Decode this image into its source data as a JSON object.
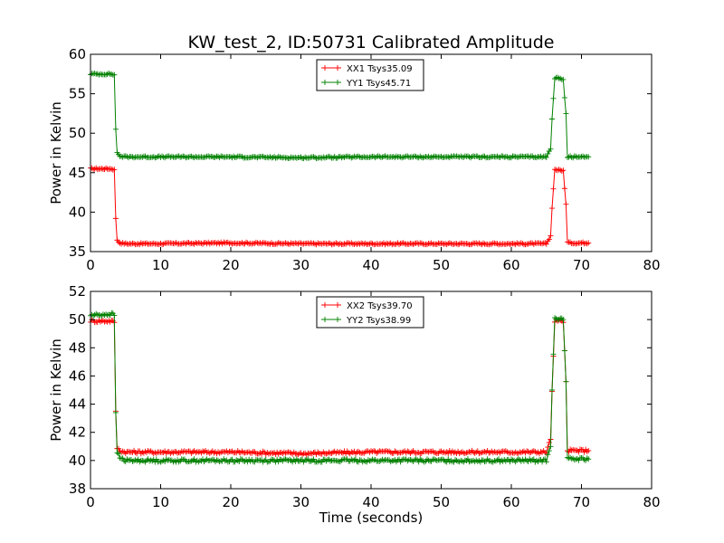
{
  "figure": {
    "title": "KW_test_2, ID:50731 Calibrated Amplitude"
  },
  "chart_data": [
    {
      "type": "line",
      "title": "KW_test_2, ID:50731 Calibrated Amplitude",
      "xlabel": "",
      "ylabel": "Power in Kelvin",
      "xlim": [
        0,
        80
      ],
      "ylim": [
        35,
        60
      ],
      "xticks": [
        "0",
        "10",
        "20",
        "30",
        "40",
        "50",
        "60",
        "70",
        "80"
      ],
      "yticks": [
        "35",
        "40",
        "45",
        "50",
        "55",
        "60"
      ],
      "grid": false,
      "legend_position": "top-center",
      "series": [
        {
          "name": "XX1 Tsys35.09",
          "color": "#ff0000",
          "marker": "plus",
          "x": [
            0,
            3.0,
            3.4,
            3.6,
            3.8,
            4.2,
            5,
            10,
            20,
            30,
            40,
            50,
            60,
            65.0,
            65.6,
            65.8,
            66.2,
            67.0,
            67.4,
            67.6,
            67.8,
            68.0,
            68.4,
            71.0
          ],
          "y": [
            45.5,
            45.5,
            45.4,
            39.2,
            36.4,
            36.1,
            36.0,
            36.0,
            36.1,
            36.0,
            36.0,
            36.0,
            36.0,
            36.0,
            37.0,
            40.5,
            45.4,
            45.3,
            45.3,
            43.0,
            41.0,
            36.2,
            36.1,
            36.1
          ]
        },
        {
          "name": "YY1 Tsys45.71",
          "color": "#008000",
          "marker": "plus",
          "x": [
            0,
            3.0,
            3.4,
            3.6,
            3.8,
            4.2,
            5,
            10,
            20,
            30,
            40,
            50,
            60,
            65.0,
            65.6,
            65.8,
            66.2,
            67.0,
            67.4,
            67.6,
            67.8,
            68.0,
            68.4,
            71.0
          ],
          "y": [
            57.5,
            57.5,
            57.4,
            50.5,
            47.5,
            47.1,
            47.0,
            47.0,
            47.0,
            46.9,
            47.0,
            47.0,
            47.0,
            47.0,
            48.0,
            51.8,
            57.0,
            57.0,
            56.8,
            54.5,
            52.5,
            47.0,
            47.0,
            47.0
          ]
        }
      ]
    },
    {
      "type": "line",
      "title": "",
      "xlabel": "Time (seconds)",
      "ylabel": "Power in Kelvin",
      "xlim": [
        0,
        80
      ],
      "ylim": [
        38,
        52
      ],
      "xticks": [
        "0",
        "10",
        "20",
        "30",
        "40",
        "50",
        "60",
        "70",
        "80"
      ],
      "yticks": [
        "38",
        "40",
        "42",
        "44",
        "46",
        "48",
        "50",
        "52"
      ],
      "grid": false,
      "legend_position": "top-center",
      "series": [
        {
          "name": "XX2 Tsys39.70",
          "color": "#ff0000",
          "marker": "plus",
          "x": [
            0,
            3.0,
            3.4,
            3.6,
            3.8,
            4.2,
            5,
            10,
            20,
            30,
            40,
            50,
            60,
            65.0,
            65.6,
            65.8,
            66.2,
            67.0,
            67.4,
            67.6,
            67.8,
            68.0,
            68.4,
            71.0
          ],
          "y": [
            49.9,
            49.9,
            49.8,
            43.5,
            40.9,
            40.7,
            40.6,
            40.6,
            40.6,
            40.5,
            40.6,
            40.6,
            40.6,
            40.6,
            41.5,
            44.9,
            49.9,
            49.9,
            49.8,
            47.8,
            45.6,
            40.7,
            40.7,
            40.7
          ]
        },
        {
          "name": "YY2 Tsys38.99",
          "color": "#008000",
          "marker": "plus",
          "x": [
            0,
            3.0,
            3.4,
            3.6,
            3.8,
            4.2,
            5,
            10,
            20,
            30,
            40,
            50,
            60,
            65.0,
            65.6,
            65.8,
            66.2,
            67.0,
            67.4,
            67.6,
            67.8,
            68.0,
            68.4,
            71.0
          ],
          "y": [
            50.3,
            50.4,
            50.3,
            43.4,
            40.6,
            40.2,
            40.0,
            40.0,
            40.0,
            40.0,
            40.0,
            40.0,
            40.0,
            40.0,
            41.0,
            45.0,
            50.1,
            50.1,
            50.0,
            47.8,
            45.6,
            40.1,
            40.1,
            40.1
          ]
        }
      ]
    }
  ]
}
